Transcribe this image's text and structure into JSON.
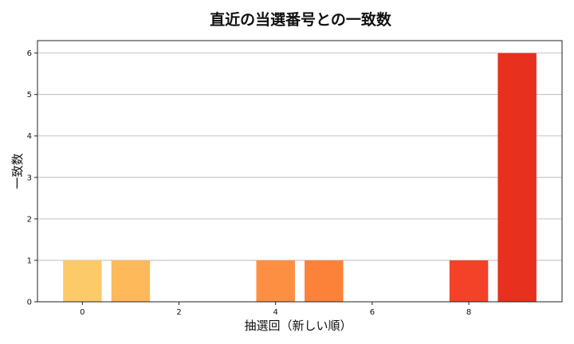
{
  "chart_data": {
    "type": "bar",
    "title": "直近の当選番号との一致数",
    "xlabel": "抽選回（新しい順）",
    "ylabel": "一致数",
    "x": [
      0,
      1,
      2,
      3,
      4,
      5,
      6,
      7,
      8,
      9
    ],
    "values": [
      1,
      1,
      0,
      0,
      1,
      1,
      0,
      0,
      1,
      6
    ],
    "colors": [
      "#fdca6a",
      "#fdb95a",
      "#fda64e",
      "#fd9446",
      "#fd8f43",
      "#fc8139",
      "#fb6c2e",
      "#f85a26",
      "#f34227",
      "#e8301f"
    ],
    "xlim": [
      -0.93,
      9.93
    ],
    "ylim": [
      0,
      6.3
    ],
    "xticks": [
      0,
      2,
      4,
      6,
      8
    ],
    "yticks": [
      0,
      1,
      2,
      3,
      4,
      5,
      6
    ],
    "grid": "y"
  }
}
